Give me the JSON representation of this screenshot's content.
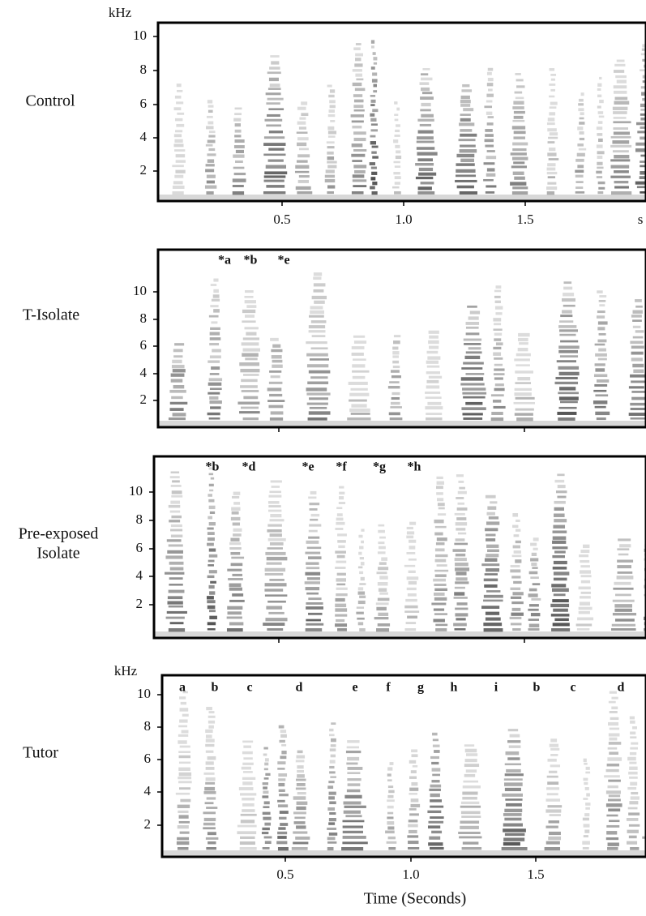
{
  "panels": [
    {
      "label": [
        "Control"
      ],
      "y_unit": "kHz",
      "yticks": [
        "10",
        "8",
        "6",
        "4",
        "2"
      ],
      "syllables": [],
      "xticks": [
        "0.5",
        "1.0",
        "1.5",
        "s"
      ]
    },
    {
      "label": [
        "T-Isolate"
      ],
      "yticks": [
        "10",
        "8",
        "6",
        "4",
        "2"
      ],
      "syllables": [
        "*a",
        "*b",
        "*e"
      ],
      "xticks": []
    },
    {
      "label": [
        "Pre-exposed",
        "Isolate"
      ],
      "yticks": [
        "10",
        "8",
        "6",
        "4",
        "2"
      ],
      "syllables": [
        "*b",
        "*d",
        "*e",
        "*f",
        "*g",
        "*h"
      ],
      "xticks": []
    },
    {
      "label": [
        "Tutor"
      ],
      "y_unit": "kHz",
      "yticks": [
        "10",
        "8",
        "6",
        "4",
        "2"
      ],
      "syllables": [
        "a",
        "b",
        "c",
        "d",
        "e",
        "f",
        "g",
        "h",
        "i",
        "b",
        "c",
        "d"
      ],
      "xticks": [
        "0.5",
        "1.0",
        "1.5"
      ]
    }
  ],
  "x_axis_title": "Time (Seconds)"
}
